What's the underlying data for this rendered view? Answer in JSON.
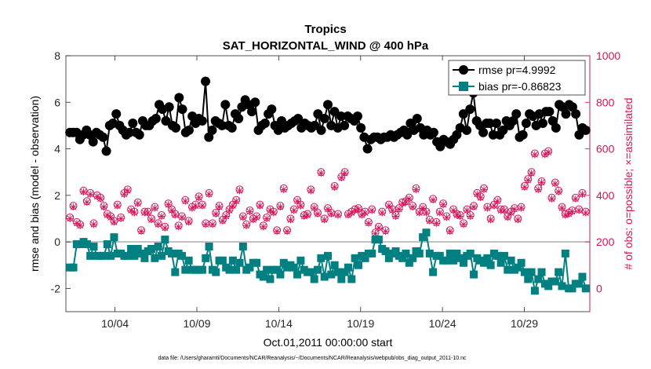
{
  "chart_data": {
    "type": "line",
    "title": "Tropics",
    "subtitle": "SAT_HORIZONTAL_WIND @ 400 hPa",
    "xlabel": "Oct.01,2011 00:00:00 start",
    "ylabel_left": "rmse and bias (model - observation)",
    "ylabel_right": "# of obs: o=possible; ×=assimilated",
    "xlim": [
      1,
      33
    ],
    "ylim_left": [
      -3,
      8
    ],
    "ylim_right": [
      -100,
      1000
    ],
    "x_ticks": [
      4,
      9,
      14,
      19,
      24,
      29
    ],
    "x_tick_labels": [
      "10/04",
      "10/09",
      "10/14",
      "10/19",
      "10/24",
      "10/29"
    ],
    "y_ticks_left": [
      -2,
      0,
      2,
      4,
      6,
      8
    ],
    "y_tick_labels_left": [
      "-2",
      "0",
      "2",
      "4",
      "6",
      "8"
    ],
    "y_ticks_right": [
      0,
      200,
      400,
      600,
      800,
      1000
    ],
    "y_tick_labels_right": [
      "0",
      "200",
      "400",
      "600",
      "800",
      "1000"
    ],
    "footer": "data file: /Users/gharamti/Documents/NCAR/Reanalysis/~/Documents/NCAR/Reanalysis/webpub/obs_diag_output_2011-10.nc",
    "colors": {
      "rmse": "#000000",
      "bias": "#008080",
      "obs": "#d4145a",
      "zero_line": "#b3b3b3"
    },
    "series": [
      {
        "name": "rmse pr=4.9992",
        "axis": "left",
        "marker": "circle",
        "values": [
          4.7,
          4.7,
          4.7,
          4.4,
          4.6,
          4.8,
          4.6,
          4.3,
          4.7,
          4.6,
          4.5,
          3.9,
          5.0,
          5.1,
          5.5,
          5.0,
          4.8,
          4.6,
          4.7,
          5.1,
          4.7,
          4.6,
          5.2,
          5.0,
          5.0,
          5.2,
          5.3,
          5.9,
          5.7,
          5.2,
          5.8,
          5.0,
          4.9,
          6.2,
          5.7,
          4.7,
          4.8,
          5.4,
          5.1,
          5.3,
          5.2,
          6.9,
          4.5,
          4.8,
          5.2,
          5.1,
          5.0,
          5.9,
          5.0,
          4.9,
          5.5,
          5.3,
          5.8,
          6.1,
          5.9,
          5.6,
          6.0,
          4.8,
          5.0,
          5.1,
          5.5,
          5.7,
          5.0,
          4.8,
          5.2,
          4.9,
          5.0,
          5.1,
          5.2,
          5.3,
          4.9,
          5.1,
          5.0,
          4.9,
          5.0,
          5.5,
          4.8,
          5.3,
          5.9,
          5.0,
          5.6,
          4.9,
          5.4,
          5.0,
          5.4,
          5.3,
          5.2,
          5.4,
          4.9,
          4.5,
          4.0,
          4.4,
          4.5,
          4.5,
          4.4,
          4.5,
          4.5,
          4.6,
          4.5,
          4.6,
          4.7,
          4.8,
          4.6,
          5.1,
          4.8,
          5.3,
          4.9,
          4.6,
          4.8,
          4.6,
          4.7,
          4.3,
          4.1,
          4.4,
          4.3,
          4.2,
          4.4,
          4.6,
          4.9,
          5.5,
          4.8,
          5.7,
          6.4,
          5.2,
          5.0,
          4.7,
          5.1,
          5.1,
          4.6,
          5.1,
          4.6,
          4.8,
          5.2,
          5.0,
          5.2,
          5.5,
          4.5,
          4.6,
          5.1,
          5.5,
          5.4,
          5.0,
          5.5,
          5.1,
          5.6,
          5.6,
          5.2,
          4.9,
          5.9,
          5.8,
          5.5,
          5.9,
          5.8,
          5.5,
          4.6,
          4.9,
          4.8
        ]
      },
      {
        "name": "bias pr=-0.86823",
        "axis": "left",
        "marker": "square",
        "values": [
          -1.1,
          -1.1,
          -0.1,
          -0.1,
          0.0,
          -0.1,
          -0.6,
          -0.2,
          -0.6,
          -0.6,
          -0.6,
          -0.1,
          -0.6,
          0.2,
          -0.5,
          -0.5,
          -0.6,
          -0.6,
          -0.3,
          -0.6,
          -0.3,
          -0.5,
          -0.7,
          -0.4,
          -0.3,
          -0.7,
          -0.2,
          -0.6,
          0.1,
          -0.4,
          -0.5,
          -1.3,
          -0.5,
          -0.6,
          -1.2,
          -0.8,
          -1.2,
          -1.2,
          -1.2,
          -1.2,
          -0.7,
          -0.2,
          -1.2,
          -1.3,
          -0.8,
          -0.8,
          -1.1,
          -1.2,
          -0.8,
          -1.2,
          -0.9,
          -0.2,
          -1.2,
          -1.1,
          -0.9,
          -0.9,
          -1.4,
          -1.5,
          -1.2,
          -1.6,
          -1.2,
          -1.2,
          -1.4,
          -0.9,
          -1.1,
          -1.0,
          -1.1,
          -1.4,
          -0.8,
          -1.2,
          -1.3,
          -1.3,
          -1.6,
          -1.2,
          -0.7,
          -1.5,
          -0.6,
          -1.4,
          -1.0,
          -1.3,
          -1.6,
          -1.3,
          -1.1,
          -1.6,
          -0.7,
          -1.0,
          -0.6,
          -0.7,
          -0.5,
          -0.5,
          0.1,
          0.1,
          -0.3,
          -0.4,
          -0.7,
          -0.5,
          -0.4,
          -0.6,
          -0.7,
          -0.5,
          -0.9,
          -0.7,
          -0.4,
          -0.5,
          0.2,
          0.4,
          -0.5,
          -1.3,
          -0.6,
          -0.6,
          -0.8,
          -0.8,
          -0.5,
          -0.8,
          -0.5,
          -0.7,
          -0.9,
          -0.6,
          -0.5,
          -1.4,
          -0.7,
          -0.8,
          -0.9,
          -0.7,
          -1.0,
          -0.5,
          -0.6,
          -0.9,
          -0.6,
          -1.2,
          -0.8,
          -1.2,
          -1.1,
          -0.9,
          -1.3,
          -1.6,
          -1.3,
          -2.1,
          -1.6,
          -1.3,
          -1.8,
          -1.9,
          -1.7,
          -1.7,
          -1.3,
          -1.9,
          -0.5,
          -2.0,
          -2.0,
          -1.8,
          -1.8,
          -1.5,
          -2.0
        ]
      },
      {
        "name": "obs possible",
        "axis": "right",
        "marker": "circle-open",
        "values": [
          305,
          355,
          285,
          275,
          420,
          375,
          410,
          280,
          400,
          390,
          355,
          320,
          310,
          290,
          360,
          305,
          410,
          425,
          340,
          330,
          370,
          250,
          330,
          330,
          300,
          350,
          280,
          315,
          265,
          365,
          340,
          320,
          270,
          310,
          380,
          290,
          350,
          360,
          395,
          360,
          280,
          410,
          280,
          325,
          355,
          295,
          315,
          340,
          360,
          380,
          425,
          310,
          275,
          335,
          300,
          310,
          360,
          270,
          305,
          340,
          330,
          250,
          355,
          430,
          250,
          300,
          340,
          380,
          360,
          315,
          320,
          425,
          350,
          325,
          500,
          300,
          345,
          325,
          440,
          320,
          480,
          500,
          320,
          330,
          340,
          345,
          320,
          330,
          285,
          340,
          240,
          265,
          330,
          250,
          360,
          340,
          315,
          345,
          370,
          375,
          390,
          355,
          430,
          330,
          350,
          330,
          295,
          385,
          285,
          330,
          365,
          310,
          250,
          340,
          320,
          315,
          280,
          340,
          315,
          355,
          410,
          395,
          430,
          350,
          300,
          360,
          380,
          340,
          340,
          310,
          330,
          345,
          300,
          350,
          440,
          470,
          500,
          580,
          430,
          460,
          580,
          590,
          390,
          455,
          420,
          350,
          320,
          325,
          335,
          390,
          340,
          410,
          330
        ]
      },
      {
        "name": "obs assimilated",
        "axis": "right",
        "marker": "x",
        "values": [
          300,
          350,
          280,
          270,
          415,
          370,
          405,
          275,
          395,
          385,
          350,
          315,
          305,
          285,
          355,
          300,
          405,
          420,
          335,
          325,
          365,
          245,
          325,
          325,
          295,
          345,
          275,
          310,
          260,
          360,
          335,
          315,
          265,
          305,
          375,
          285,
          345,
          355,
          390,
          355,
          275,
          405,
          275,
          320,
          350,
          290,
          310,
          335,
          355,
          375,
          420,
          305,
          270,
          330,
          295,
          305,
          355,
          265,
          300,
          335,
          325,
          245,
          350,
          425,
          245,
          295,
          335,
          375,
          355,
          310,
          315,
          420,
          345,
          320,
          495,
          295,
          340,
          320,
          435,
          315,
          475,
          495,
          315,
          325,
          335,
          340,
          315,
          325,
          280,
          335,
          235,
          260,
          325,
          245,
          355,
          335,
          310,
          340,
          365,
          370,
          385,
          350,
          425,
          325,
          345,
          325,
          290,
          380,
          280,
          325,
          360,
          305,
          245,
          335,
          315,
          310,
          275,
          335,
          310,
          350,
          405,
          390,
          425,
          345,
          295,
          355,
          375,
          335,
          335,
          305,
          325,
          340,
          295,
          345,
          435,
          465,
          495,
          575,
          425,
          455,
          575,
          585,
          385,
          450,
          415,
          345,
          315,
          320,
          330,
          385,
          335,
          405,
          325
        ]
      }
    ]
  }
}
